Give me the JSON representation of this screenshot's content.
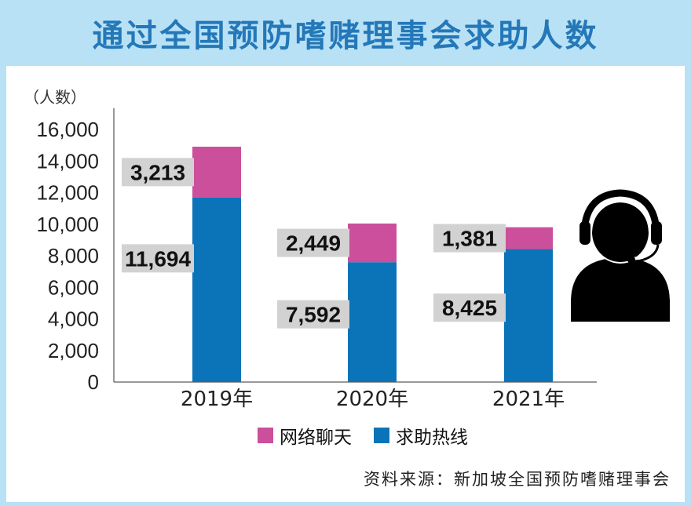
{
  "title": "通过全国预防嗜赌理事会求助人数",
  "unit_label": "（人数）",
  "source": "资料来源：新加坡全国预防嗜赌理事会",
  "chart_data": {
    "type": "bar",
    "stacked": true,
    "categories": [
      "2019年",
      "2020年",
      "2021年"
    ],
    "series": [
      {
        "name": "求助热线",
        "color": "#0b74b8",
        "values": [
          11694,
          7592,
          8425
        ],
        "labels": [
          "11,694",
          "7,592",
          "8,425"
        ]
      },
      {
        "name": "网络聊天",
        "color": "#cc4f9c",
        "values": [
          3213,
          2449,
          1381
        ],
        "labels": [
          "3,213",
          "2,449",
          "1,381"
        ]
      }
    ],
    "ylim": [
      0,
      16000
    ],
    "yticks": [
      0,
      2000,
      4000,
      6000,
      8000,
      10000,
      12000,
      14000,
      16000
    ],
    "ytick_labels": [
      "0",
      "2,000",
      "4,000",
      "6,000",
      "8,000",
      "10,000",
      "12,000",
      "14,000",
      "16,000"
    ],
    "grid": false,
    "legend": "bottom"
  },
  "icon": "headset-user-icon"
}
